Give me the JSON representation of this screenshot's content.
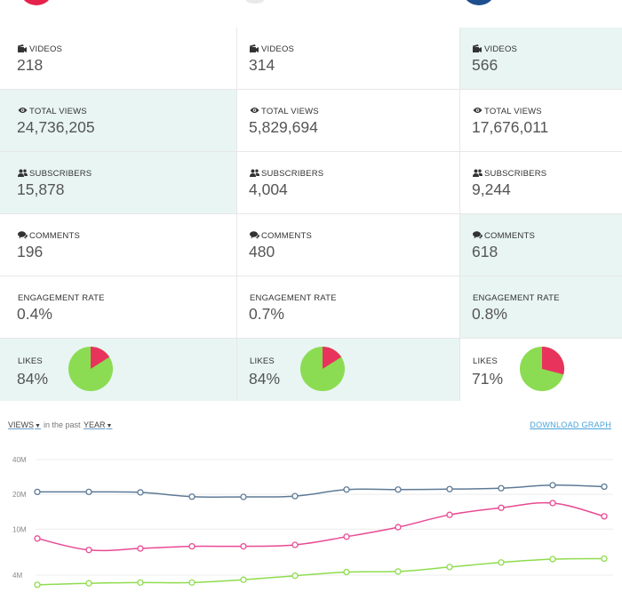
{
  "colors": {
    "highlight": "#e8f5f3",
    "border": "#e7e7e7",
    "pie_green": "#8bdc53",
    "pie_red": "#e8335d",
    "line_blue": "#5e7a96",
    "line_pink": "#e84a94",
    "line_green": "#8fdc4e",
    "link": "#4aa3d8"
  },
  "channels": [
    {
      "badge_color": "#e4224b",
      "stats": [
        {
          "icon": "video-camera-icon",
          "label": "VIDEOS",
          "value": "218",
          "highlight": false
        },
        {
          "icon": "eye-icon",
          "label": "TOTAL VIEWS",
          "value": "24,736,205",
          "highlight": true
        },
        {
          "icon": "users-icon",
          "label": "SUBSCRIBERS",
          "value": "15,878",
          "highlight": true
        },
        {
          "icon": "comments-icon",
          "label": "COMMENTS",
          "value": "196",
          "highlight": false
        },
        {
          "icon": "",
          "label": "ENGAGEMENT RATE",
          "value": "0.4%",
          "highlight": false
        }
      ],
      "likes": {
        "label": "LIKES",
        "value": "84%",
        "fraction": 0.84,
        "highlight": true
      }
    },
    {
      "badge_color": "#e9e9e9",
      "stats": [
        {
          "icon": "video-camera-icon",
          "label": "VIDEOS",
          "value": "314",
          "highlight": false
        },
        {
          "icon": "eye-icon",
          "label": "TOTAL VIEWS",
          "value": "5,829,694",
          "highlight": false
        },
        {
          "icon": "users-icon",
          "label": "SUBSCRIBERS",
          "value": "4,004",
          "highlight": false
        },
        {
          "icon": "comments-icon",
          "label": "COMMENTS",
          "value": "480",
          "highlight": false
        },
        {
          "icon": "",
          "label": "ENGAGEMENT RATE",
          "value": "0.7%",
          "highlight": false
        }
      ],
      "likes": {
        "label": "LIKES",
        "value": "84%",
        "fraction": 0.84,
        "highlight": true
      }
    },
    {
      "badge_color": "#1d4f8f",
      "stats": [
        {
          "icon": "video-camera-icon",
          "label": "VIDEOS",
          "value": "566",
          "highlight": true
        },
        {
          "icon": "eye-icon",
          "label": "TOTAL VIEWS",
          "value": "17,676,011",
          "highlight": false
        },
        {
          "icon": "users-icon",
          "label": "SUBSCRIBERS",
          "value": "9,244",
          "highlight": false
        },
        {
          "icon": "comments-icon",
          "label": "COMMENTS",
          "value": "618",
          "highlight": true
        },
        {
          "icon": "",
          "label": "ENGAGEMENT RATE",
          "value": "0.8%",
          "highlight": true
        }
      ],
      "likes": {
        "label": "LIKES",
        "value": "71%",
        "fraction": 0.71,
        "highlight": false
      }
    }
  ],
  "graph_controls": {
    "metric": "VIEWS",
    "in_the_past": "in the past",
    "period": "YEAR",
    "download": "DOWNLOAD GRAPH"
  },
  "chart_data": {
    "type": "line",
    "y_scale": "log",
    "grid": true,
    "y_ticks": [
      "40M",
      "20M",
      "10M",
      "4M"
    ],
    "y_tick_values": [
      40000000,
      20000000,
      10000000,
      4000000
    ],
    "ylim": [
      3000000,
      40000000
    ],
    "x": [
      1,
      2,
      3,
      4,
      5,
      6,
      7,
      8,
      9,
      10,
      11,
      12
    ],
    "series": [
      {
        "color": "#5e7a96",
        "values": [
          21000000,
          21000000,
          20800000,
          19100000,
          19000000,
          19300000,
          22000000,
          22000000,
          22200000,
          22600000,
          24000000,
          23300000
        ]
      },
      {
        "color": "#e84a94",
        "values": [
          8300000,
          6600000,
          6800000,
          7100000,
          7100000,
          7300000,
          8600000,
          10400000,
          13300000,
          15300000,
          16800000,
          12900000
        ]
      },
      {
        "color": "#8fdc4e",
        "values": [
          3300000,
          3400000,
          3450000,
          3450000,
          3650000,
          3950000,
          4250000,
          4300000,
          4700000,
          5150000,
          5500000,
          5550000
        ]
      }
    ]
  }
}
